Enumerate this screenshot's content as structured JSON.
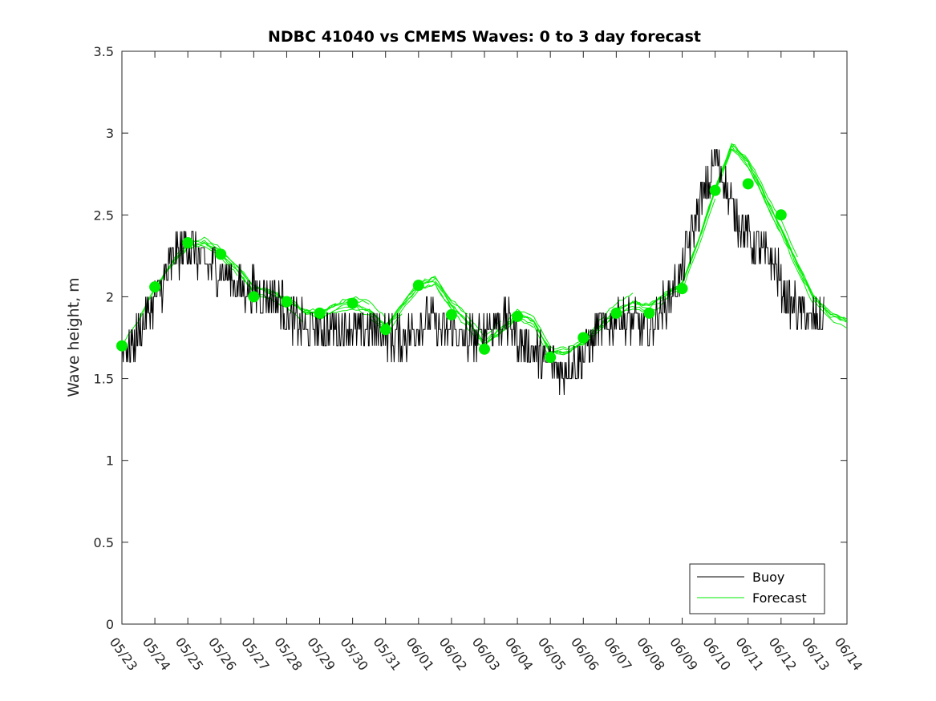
{
  "chart_data": {
    "type": "line",
    "title": "NDBC 41040 vs CMEMS Waves: 0 to 3 day forecast",
    "xlabel": "",
    "ylabel": "Wave height, m",
    "xlim": [
      "05/23",
      "06/14"
    ],
    "ylim": [
      0,
      3.5
    ],
    "y_ticks": [
      "0",
      "0.5",
      "1",
      "1.5",
      "2",
      "2.5",
      "3",
      "3.5"
    ],
    "y_tick_values": [
      0,
      0.5,
      1,
      1.5,
      2,
      2.5,
      3,
      3.5
    ],
    "x_ticks": [
      "05/23",
      "05/24",
      "05/25",
      "05/26",
      "05/27",
      "05/28",
      "05/29",
      "05/30",
      "05/31",
      "06/01",
      "06/02",
      "06/03",
      "06/04",
      "06/05",
      "06/06",
      "06/07",
      "06/08",
      "06/09",
      "06/10",
      "06/11",
      "06/12",
      "06/13",
      "06/14"
    ],
    "grid": false,
    "legend_position": "bottom-right",
    "colors": {
      "buoy": "#000000",
      "forecast": "#00ee00"
    },
    "series": [
      {
        "name": "Buoy",
        "style": "noisy-line",
        "x_days": [
          0.0,
          0.2,
          0.5,
          0.8,
          1.0,
          1.3,
          1.6,
          1.9,
          2.1,
          2.4,
          2.7,
          3.0,
          3.3,
          3.6,
          3.9,
          4.0,
          4.3,
          4.6,
          4.9,
          5.0,
          5.3,
          5.6,
          5.9,
          6.0,
          6.3,
          6.6,
          6.9,
          7.0,
          7.3,
          7.6,
          7.9,
          8.0,
          8.3,
          8.6,
          8.9,
          9.0,
          9.3,
          9.6,
          9.9,
          10.0,
          10.3,
          10.6,
          10.9,
          11.0,
          11.3,
          11.6,
          11.9,
          12.0,
          12.3,
          12.6,
          12.9,
          13.0,
          13.2,
          13.5,
          13.8,
          14.0,
          14.3,
          14.6,
          14.9,
          15.0,
          15.3,
          15.6,
          15.9,
          16.0,
          16.3,
          16.6,
          16.9,
          17.0,
          17.3,
          17.6,
          17.9,
          18.0,
          18.3,
          18.6,
          18.9,
          19.0,
          19.3,
          19.6,
          19.9,
          20.0,
          20.3,
          20.6,
          20.9,
          21.0,
          21.3
        ],
        "values": [
          1.7,
          1.7,
          1.75,
          1.9,
          2.0,
          2.1,
          2.25,
          2.3,
          2.3,
          2.2,
          2.2,
          2.15,
          2.1,
          2.05,
          2.05,
          2.05,
          2.0,
          2.0,
          1.95,
          1.9,
          1.85,
          1.8,
          1.8,
          1.8,
          1.8,
          1.8,
          1.8,
          1.8,
          1.8,
          1.8,
          1.8,
          1.75,
          1.75,
          1.75,
          1.8,
          1.85,
          1.85,
          1.8,
          1.8,
          1.8,
          1.75,
          1.75,
          1.75,
          1.8,
          1.85,
          1.85,
          1.8,
          1.75,
          1.7,
          1.65,
          1.6,
          1.6,
          1.55,
          1.55,
          1.6,
          1.65,
          1.75,
          1.8,
          1.85,
          1.9,
          1.85,
          1.85,
          1.8,
          1.8,
          1.9,
          2.0,
          2.1,
          2.15,
          2.4,
          2.6,
          2.75,
          2.85,
          2.7,
          2.5,
          2.4,
          2.35,
          2.3,
          2.25,
          2.15,
          2.05,
          1.95,
          1.9,
          1.85,
          1.85,
          1.85
        ]
      },
      {
        "name": "Forecast",
        "style": "ensemble-lines",
        "x_days": [
          0.0,
          0.5,
          1.0,
          1.5,
          2.0,
          2.5,
          3.0,
          3.5,
          4.0,
          4.5,
          5.0,
          5.5,
          6.0,
          6.5,
          7.0,
          7.5,
          8.0,
          8.5,
          9.0,
          9.5,
          10.0,
          10.5,
          11.0,
          11.5,
          12.0,
          12.5,
          13.0,
          13.5,
          14.0,
          14.5,
          15.0,
          15.5,
          16.0,
          16.5,
          17.0,
          17.5,
          18.0,
          18.5,
          19.0,
          19.5,
          20.0,
          20.5,
          21.0,
          21.5,
          22.0
        ],
        "values": [
          1.7,
          1.85,
          2.05,
          2.2,
          2.32,
          2.34,
          2.28,
          2.18,
          2.05,
          2.02,
          1.97,
          1.9,
          1.88,
          1.93,
          1.96,
          1.92,
          1.82,
          1.95,
          2.07,
          2.1,
          1.95,
          1.85,
          1.72,
          1.8,
          1.9,
          1.85,
          1.66,
          1.66,
          1.72,
          1.82,
          1.92,
          1.97,
          1.95,
          2.02,
          2.08,
          2.35,
          2.65,
          2.92,
          2.82,
          2.62,
          2.42,
          2.2,
          2.0,
          1.9,
          1.86
        ]
      },
      {
        "name": "Forecast analysis points",
        "style": "markers",
        "x_days": [
          0,
          1,
          2,
          3,
          4,
          5,
          6,
          7,
          8,
          9,
          10,
          11,
          12,
          13,
          14,
          15,
          16,
          17,
          18,
          19,
          20
        ],
        "values": [
          1.7,
          2.06,
          2.33,
          2.26,
          2.0,
          1.97,
          1.9,
          1.96,
          1.8,
          2.07,
          1.89,
          1.68,
          1.88,
          1.63,
          1.75,
          1.9,
          1.9,
          2.05,
          2.65,
          2.69,
          2.5
        ]
      }
    ]
  }
}
